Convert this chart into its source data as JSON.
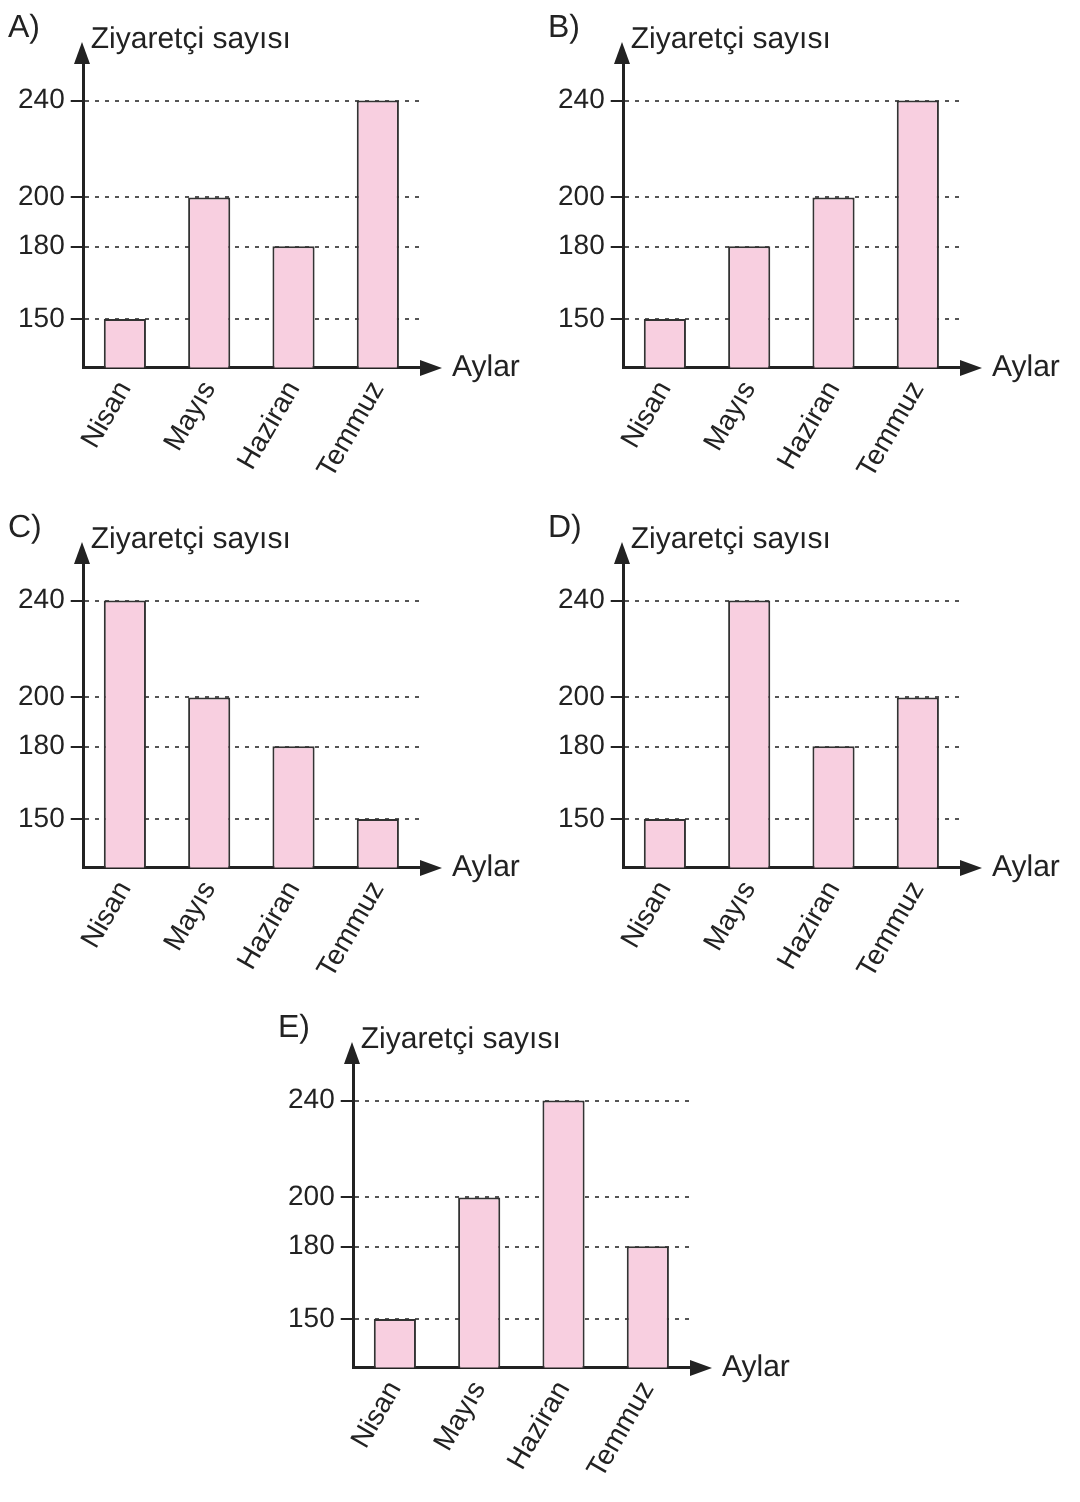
{
  "chart_data": [
    {
      "type": "bar",
      "title": "A)",
      "ylabel": "Ziyaretçi sayısı",
      "xlabel": "Aylar",
      "categories": [
        "Nisan",
        "Mayıs",
        "Haziran",
        "Temmuz"
      ],
      "values": [
        150,
        200,
        180,
        240
      ],
      "color": "#f8cfe0",
      "ylim": [
        130,
        255
      ],
      "yticks": [
        150,
        180,
        200,
        240
      ],
      "grid": "y",
      "legend": false
    },
    {
      "type": "bar",
      "title": "B)",
      "ylabel": "Ziyaretçi sayısı",
      "xlabel": "Aylar",
      "categories": [
        "Nisan",
        "Mayıs",
        "Haziran",
        "Temmuz"
      ],
      "values": [
        150,
        180,
        200,
        240
      ],
      "color": "#f8cfe0",
      "ylim": [
        130,
        255
      ],
      "yticks": [
        150,
        180,
        200,
        240
      ],
      "grid": "y",
      "legend": false
    },
    {
      "type": "bar",
      "title": "C)",
      "ylabel": "Ziyaretçi sayısı",
      "xlabel": "Aylar",
      "categories": [
        "Nisan",
        "Mayıs",
        "Haziran",
        "Temmuz"
      ],
      "values": [
        240,
        200,
        180,
        150
      ],
      "color": "#f8cfe0",
      "ylim": [
        130,
        255
      ],
      "yticks": [
        150,
        180,
        200,
        240
      ],
      "grid": "y",
      "legend": false
    },
    {
      "type": "bar",
      "title": "D)",
      "ylabel": "Ziyaretçi sayısı",
      "xlabel": "Aylar",
      "categories": [
        "Nisan",
        "Mayıs",
        "Haziran",
        "Temmuz"
      ],
      "values": [
        150,
        240,
        180,
        200
      ],
      "color": "#f8cfe0",
      "ylim": [
        130,
        255
      ],
      "yticks": [
        150,
        180,
        200,
        240
      ],
      "grid": "y",
      "legend": false
    },
    {
      "type": "bar",
      "title": "E)",
      "ylabel": "Ziyaretçi sayısı",
      "xlabel": "Aylar",
      "categories": [
        "Nisan",
        "Mayıs",
        "Haziran",
        "Temmuz"
      ],
      "values": [
        150,
        200,
        240,
        180
      ],
      "color": "#f8cfe0",
      "ylim": [
        130,
        255
      ],
      "yticks": [
        150,
        180,
        200,
        240
      ],
      "grid": "y",
      "legend": false
    }
  ]
}
